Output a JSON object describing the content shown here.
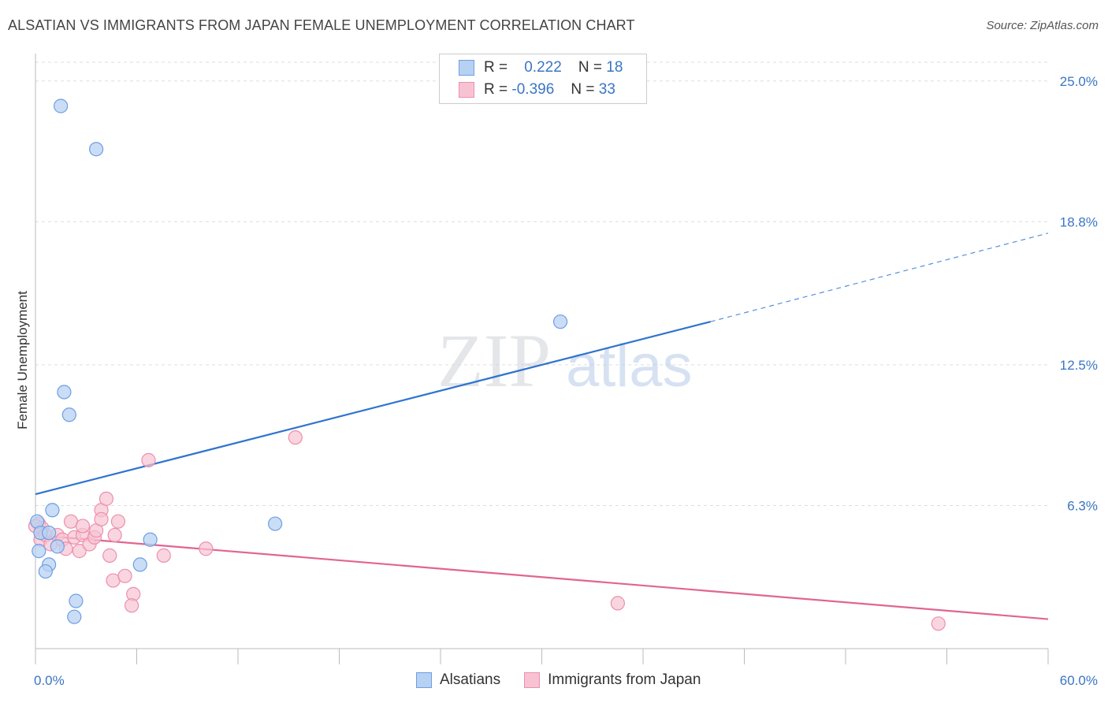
{
  "header": {
    "title": "ALSATIAN VS IMMIGRANTS FROM JAPAN FEMALE UNEMPLOYMENT CORRELATION CHART",
    "source": "Source: ZipAtlas.com"
  },
  "legend": {
    "rows": [
      {
        "r_label": "R =",
        "r_value": "0.222",
        "n_label": "N =",
        "n_value": "18"
      },
      {
        "r_label": "R =",
        "r_value": "-0.396",
        "n_label": "N =",
        "n_value": "33"
      }
    ]
  },
  "watermark": {
    "zip": "ZIP",
    "atlas": "atlas"
  },
  "colors": {
    "blue_fill": "#b7d1f3",
    "blue_stroke": "#6f9ee0",
    "blue_line": "#2f74d0",
    "pink_fill": "#f7c3d3",
    "pink_stroke": "#ec8fae",
    "pink_line": "#e06592",
    "axis_label": "#3a75c4",
    "grid": "#dddddd"
  },
  "chart_data": {
    "type": "scatter",
    "title": "ALSATIAN VS IMMIGRANTS FROM JAPAN FEMALE UNEMPLOYMENT CORRELATION CHART",
    "xlabel": "",
    "ylabel": "Female Unemployment",
    "xlim": [
      0,
      60
    ],
    "ylim": [
      0,
      26
    ],
    "x_tick_labels": [
      "0.0%",
      "60.0%"
    ],
    "y_ticks": [
      6.3,
      12.5,
      18.8,
      25.0
    ],
    "y_tick_labels": [
      "6.3%",
      "12.5%",
      "18.8%",
      "25.0%"
    ],
    "grid": true,
    "series": [
      {
        "name": "Alsatians",
        "color": "blue",
        "points": [
          [
            1.5,
            23.9
          ],
          [
            3.6,
            22.0
          ],
          [
            1.7,
            11.3
          ],
          [
            2.0,
            10.3
          ],
          [
            31.1,
            14.4
          ],
          [
            1.0,
            6.1
          ],
          [
            0.1,
            5.6
          ],
          [
            0.3,
            5.1
          ],
          [
            0.8,
            5.1
          ],
          [
            1.3,
            4.5
          ],
          [
            0.2,
            4.3
          ],
          [
            6.8,
            4.8
          ],
          [
            14.2,
            5.5
          ],
          [
            0.8,
            3.7
          ],
          [
            6.2,
            3.7
          ],
          [
            0.6,
            3.4
          ],
          [
            2.4,
            2.1
          ],
          [
            2.3,
            1.4
          ]
        ],
        "trend": {
          "x0": 0,
          "y0": 6.8,
          "x1": 40,
          "y1": 14.4,
          "dashed_to_x": 60,
          "dashed_to_y": 18.3
        }
      },
      {
        "name": "Immigrants from Japan",
        "color": "pink",
        "points": [
          [
            0.2,
            5.5
          ],
          [
            0.4,
            5.3
          ],
          [
            0.3,
            4.8
          ],
          [
            0.6,
            5.0
          ],
          [
            0.9,
            4.6
          ],
          [
            1.3,
            5.0
          ],
          [
            1.6,
            4.8
          ],
          [
            1.8,
            4.4
          ],
          [
            2.1,
            5.6
          ],
          [
            2.3,
            4.9
          ],
          [
            2.6,
            4.3
          ],
          [
            2.8,
            5.0
          ],
          [
            2.8,
            5.4
          ],
          [
            3.2,
            4.6
          ],
          [
            3.5,
            4.9
          ],
          [
            3.6,
            5.2
          ],
          [
            3.9,
            6.1
          ],
          [
            3.9,
            5.7
          ],
          [
            4.2,
            6.6
          ],
          [
            4.4,
            4.1
          ],
          [
            4.7,
            5.0
          ],
          [
            4.9,
            5.6
          ],
          [
            4.6,
            3.0
          ],
          [
            5.3,
            3.2
          ],
          [
            5.8,
            2.4
          ],
          [
            5.7,
            1.9
          ],
          [
            6.7,
            8.3
          ],
          [
            7.6,
            4.1
          ],
          [
            10.1,
            4.4
          ],
          [
            15.4,
            9.3
          ],
          [
            34.5,
            2.0
          ],
          [
            53.5,
            1.1
          ],
          [
            0.0,
            5.4
          ]
        ],
        "trend": {
          "x0": 0,
          "y0": 5.0,
          "x1": 60,
          "y1": 1.3
        }
      }
    ]
  },
  "bottom_legend": {
    "items": [
      {
        "label": "Alsatians"
      },
      {
        "label": "Immigrants from Japan"
      }
    ]
  }
}
